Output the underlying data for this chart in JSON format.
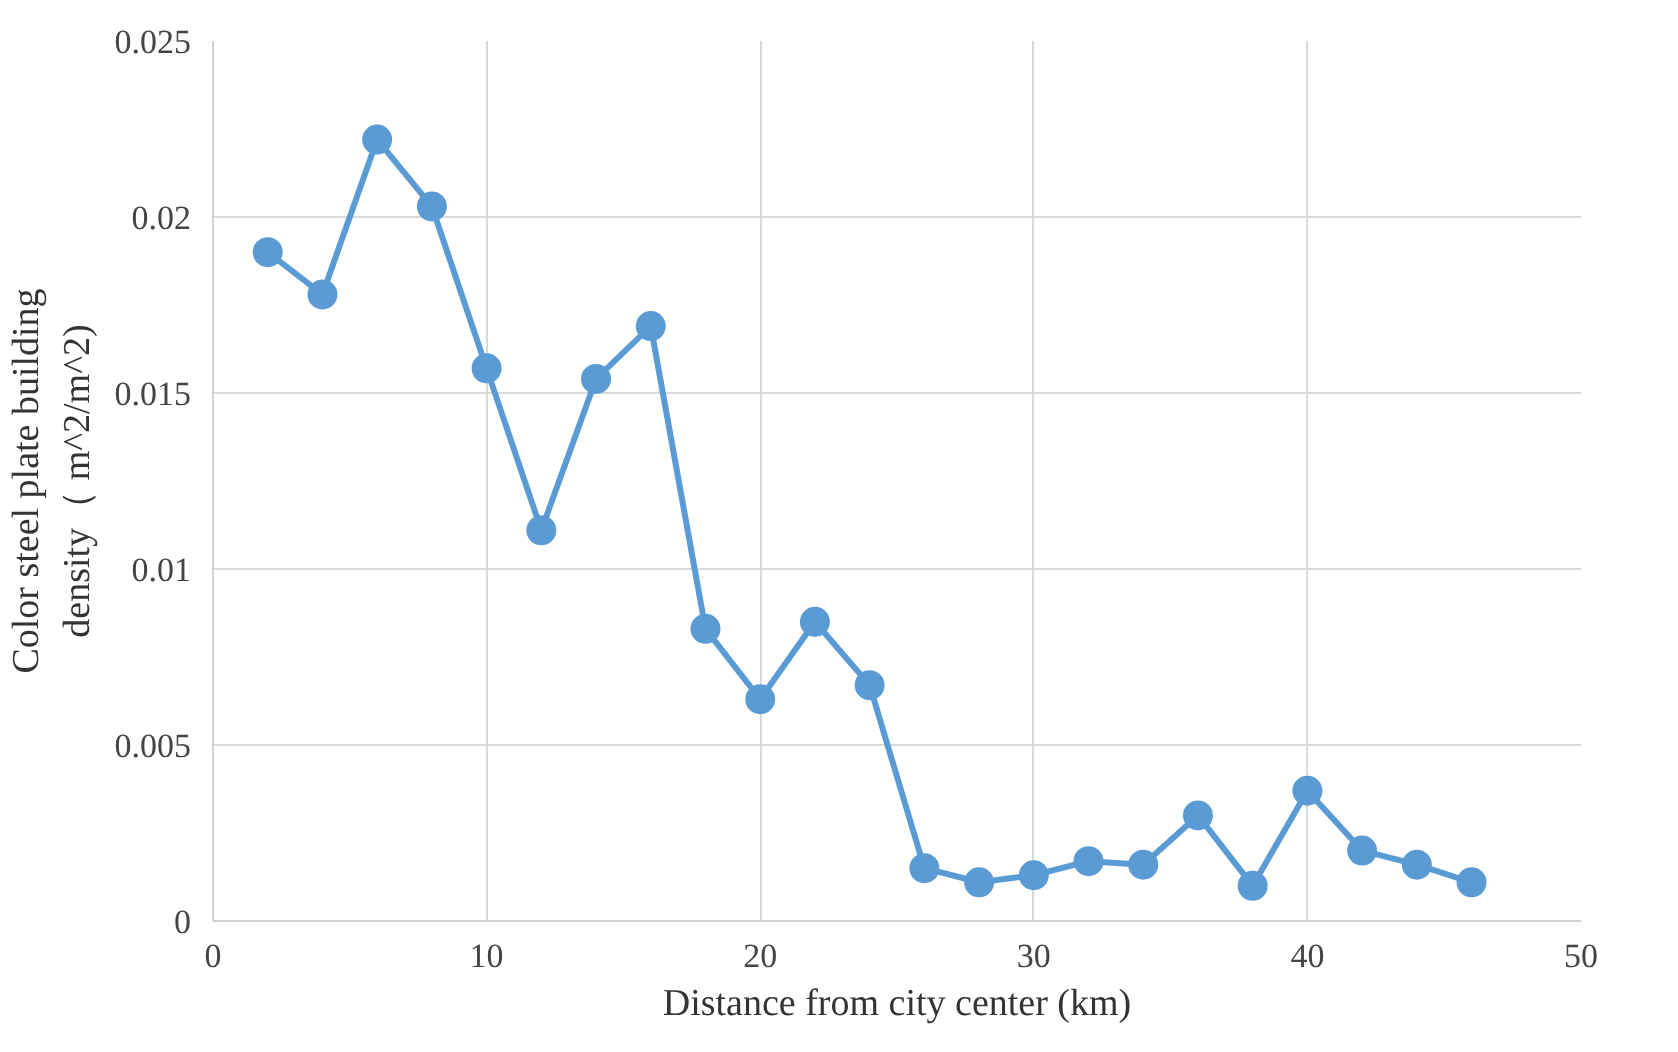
{
  "chart_data": {
    "type": "line",
    "xlabel": "Distance from city center (km)",
    "ylabel": "Color steel plate building density（ m^2/m^2)",
    "x": [
      2,
      4,
      6,
      8,
      10,
      12,
      14,
      16,
      18,
      20,
      22,
      24,
      26,
      28,
      30,
      32,
      34,
      36,
      38,
      40,
      42,
      44,
      46
    ],
    "series": [
      {
        "color": "#5b9bd5",
        "values": [
          0.019,
          0.0178,
          0.0222,
          0.0203,
          0.0157,
          0.0111,
          0.0154,
          0.0169,
          0.0083,
          0.0063,
          0.0085,
          0.0067,
          0.0015,
          0.0011,
          0.0013,
          0.0017,
          0.0016,
          0.003,
          0.001,
          0.0037,
          0.002,
          0.0016,
          0.0011
        ]
      }
    ],
    "xlim": [
      0,
      50
    ],
    "xticks": [
      0,
      10,
      20,
      30,
      40,
      50
    ],
    "ylim": [
      0,
      0.025
    ],
    "yticks": [
      0,
      0.005,
      0.01,
      0.015,
      0.02,
      0.025
    ],
    "grid": true,
    "marker": "circle",
    "line_style": "solid"
  }
}
